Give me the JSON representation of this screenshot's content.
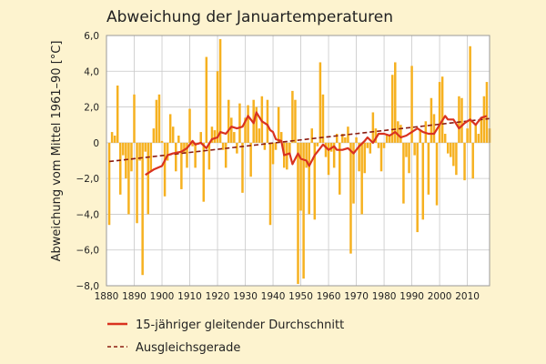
{
  "chart_data": {
    "type": "bar",
    "title": "Abweichung der Januartemperaturen",
    "ylabel": "Abweichung vom Mittel 1961–90 [°C]",
    "xlim": [
      1880,
      2018
    ],
    "ylim": [
      -8,
      6
    ],
    "xticks": [
      1880,
      1890,
      1900,
      1910,
      1920,
      1930,
      1940,
      1950,
      1960,
      1970,
      1980,
      1990,
      2000,
      2010
    ],
    "yticks": [
      {
        "v": 6,
        "label": "6,0"
      },
      {
        "v": 4,
        "label": "4,0"
      },
      {
        "v": 2,
        "label": "2,0"
      },
      {
        "v": 0,
        "label": "0"
      },
      {
        "v": -2,
        "label": "−2,0"
      },
      {
        "v": -4,
        "label": "−4,0"
      },
      {
        "v": -6,
        "label": "−6,0"
      },
      {
        "v": -8,
        "label": "−8,0"
      }
    ],
    "grid": true,
    "colors": {
      "bars": "#f6b120",
      "moving_average": "#d9321f",
      "trend": "#8b1c10",
      "grid": "#c8c8c8",
      "plot_bg": "#ffffff",
      "page_bg": "#fdf3cf"
    },
    "bar_series": {
      "years": [
        1881,
        1882,
        1883,
        1884,
        1885,
        1886,
        1887,
        1888,
        1889,
        1890,
        1891,
        1892,
        1893,
        1894,
        1895,
        1896,
        1897,
        1898,
        1899,
        1900,
        1901,
        1902,
        1903,
        1904,
        1905,
        1906,
        1907,
        1908,
        1909,
        1910,
        1911,
        1912,
        1913,
        1914,
        1915,
        1916,
        1917,
        1918,
        1919,
        1920,
        1921,
        1922,
        1923,
        1924,
        1925,
        1926,
        1927,
        1928,
        1929,
        1930,
        1931,
        1932,
        1933,
        1934,
        1935,
        1936,
        1937,
        1938,
        1939,
        1940,
        1941,
        1942,
        1943,
        1944,
        1945,
        1946,
        1947,
        1948,
        1949,
        1950,
        1951,
        1952,
        1953,
        1954,
        1955,
        1956,
        1957,
        1958,
        1959,
        1960,
        1961,
        1962,
        1963,
        1964,
        1965,
        1966,
        1967,
        1968,
        1969,
        1970,
        1971,
        1972,
        1973,
        1974,
        1975,
        1976,
        1977,
        1978,
        1979,
        1980,
        1981,
        1982,
        1983,
        1984,
        1985,
        1986,
        1987,
        1988,
        1989,
        1990,
        1991,
        1992,
        1993,
        1994,
        1995,
        1996,
        1997,
        1998,
        1999,
        2000,
        2001,
        2002,
        2003,
        2004,
        2005,
        2006,
        2007,
        2008,
        2009,
        2010,
        2011,
        2012,
        2013,
        2014,
        2015,
        2016,
        2017,
        2018
      ],
      "values": [
        -4.6,
        0.6,
        0.4,
        3.2,
        -2.9,
        -0.7,
        -2.0,
        -4.0,
        -1.6,
        2.7,
        -4.5,
        -1.0,
        -7.4,
        -0.5,
        -4.0,
        -1.6,
        0.8,
        2.4,
        2.7,
        0.1,
        -3.0,
        -1.0,
        1.6,
        0.9,
        -1.6,
        0.4,
        -2.6,
        -0.6,
        -1.4,
        1.9,
        -0.2,
        -1.4,
        -0.1,
        0.6,
        -3.3,
        4.8,
        -1.5,
        0.9,
        0.7,
        4.0,
        5.8,
        -0.4,
        -1.4,
        2.4,
        1.4,
        0.6,
        -0.6,
        2.2,
        -2.8,
        1.4,
        2.1,
        -1.9,
        2.4,
        2.0,
        0.8,
        2.6,
        -0.4,
        2.4,
        -4.6,
        -1.2,
        -0.4,
        2.0,
        0.6,
        -1.4,
        -1.5,
        -0.6,
        2.9,
        2.4,
        -7.9,
        -3.8,
        -7.6,
        -1.4,
        -4.0,
        0.8,
        -4.3,
        -0.2,
        4.5,
        2.7,
        -0.8,
        -1.8,
        -0.5,
        -1.4,
        0.5,
        -2.9,
        0.5,
        0.3,
        0.9,
        -6.2,
        -3.4,
        0.3,
        -1.6,
        -4.0,
        -1.7,
        -0.3,
        -0.6,
        1.7,
        0.8,
        -0.3,
        -1.6,
        -0.3,
        0.5,
        0.4,
        3.8,
        4.5,
        1.2,
        1.0,
        -3.4,
        -0.8,
        -1.7,
        4.3,
        -0.7,
        -5.0,
        0.7,
        -4.3,
        1.2,
        -2.9,
        2.5,
        1.6,
        -3.5,
        3.4,
        3.7,
        0.5,
        -0.6,
        -0.8,
        -1.3,
        -1.8,
        2.6,
        2.5,
        -2.1,
        0.8,
        5.4,
        -2.0,
        1.0,
        0.5,
        1.4,
        2.6,
        3.4,
        0.8
      ]
    },
    "series": [
      {
        "name": "15-jähriger gleitender Durchschnitt",
        "style": "solid",
        "x": [
          1894,
          1897,
          1900,
          1902,
          1904,
          1907,
          1909,
          1911,
          1912,
          1914,
          1916,
          1918,
          1920,
          1921,
          1923,
          1925,
          1927,
          1929,
          1931,
          1933,
          1934,
          1936,
          1938,
          1939,
          1940,
          1941,
          1943,
          1944,
          1946,
          1947,
          1949,
          1950,
          1952,
          1953,
          1955,
          1957,
          1958,
          1960,
          1962,
          1963,
          1965,
          1967,
          1969,
          1971,
          1973,
          1974,
          1976,
          1978,
          1980,
          1982,
          1984,
          1986,
          1988,
          1990,
          1992,
          1994,
          1996,
          1998,
          2000,
          2002,
          2003,
          2005,
          2007,
          2009,
          2011,
          2013,
          2015,
          2017
        ],
        "values": [
          -1.8,
          -1.5,
          -1.3,
          -0.7,
          -0.6,
          -0.5,
          -0.3,
          0.1,
          -0.1,
          0.0,
          -0.3,
          0.2,
          0.3,
          0.6,
          0.5,
          0.9,
          0.8,
          0.9,
          1.5,
          1.1,
          1.7,
          1.2,
          1.0,
          0.7,
          0.6,
          0.2,
          0.1,
          -0.7,
          -0.6,
          -1.2,
          -0.6,
          -0.9,
          -1.0,
          -1.3,
          -0.7,
          -0.3,
          -0.1,
          -0.4,
          -0.2,
          -0.4,
          -0.4,
          -0.3,
          -0.6,
          -0.2,
          0.1,
          0.3,
          0.0,
          0.5,
          0.5,
          0.4,
          0.6,
          0.3,
          0.4,
          0.6,
          0.8,
          0.6,
          0.5,
          0.5,
          1.0,
          1.5,
          1.3,
          1.3,
          0.8,
          1.1,
          1.3,
          1.0,
          1.4,
          1.5
        ]
      },
      {
        "name": "Ausgleichsgerade",
        "style": "dashed",
        "x": [
          1881,
          2018
        ],
        "values": [
          -1.05,
          1.35
        ]
      }
    ],
    "legend_position": "bottom"
  }
}
